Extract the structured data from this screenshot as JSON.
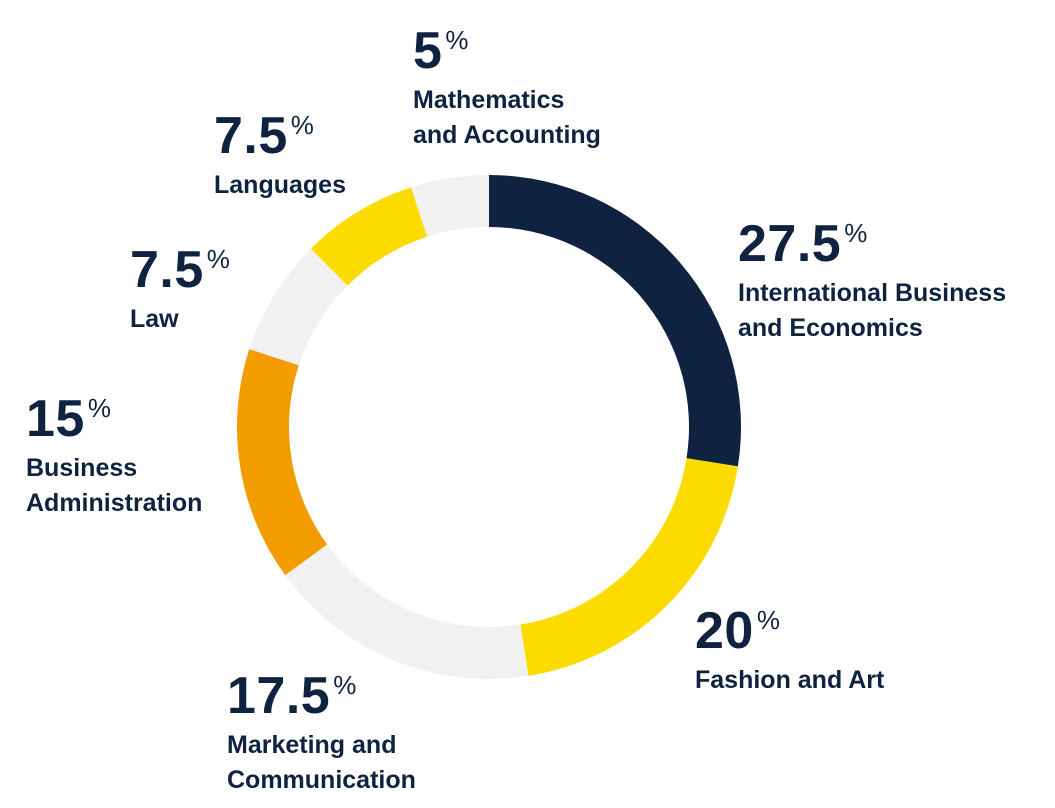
{
  "chart_data": {
    "type": "pie",
    "variant": "donut",
    "categories": [
      "International Business and Economics",
      "Fashion and Art",
      "Marketing and Communication",
      "Business Administration",
      "Law",
      "Languages",
      "Mathematics and Accounting"
    ],
    "values": [
      27.5,
      20,
      17.5,
      15,
      7.5,
      7.5,
      5
    ],
    "colors": [
      "#0f2240",
      "#fcdb00",
      "#f1f1f1",
      "#f39c00",
      "#f1f1f1",
      "#fcdb00",
      "#f1f1f1"
    ],
    "labels": [
      {
        "value": "27.5",
        "unit": "%",
        "lines": [
          "International Business",
          "and Economics"
        ]
      },
      {
        "value": "20",
        "unit": "%",
        "lines": [
          "Fashion and Art"
        ]
      },
      {
        "value": "17.5",
        "unit": "%",
        "lines": [
          "Marketing and",
          "Communication"
        ]
      },
      {
        "value": "15",
        "unit": "%",
        "lines": [
          "Business",
          "Administration"
        ]
      },
      {
        "value": "7.5",
        "unit": "%",
        "lines": [
          "Law"
        ]
      },
      {
        "value": "7.5",
        "unit": "%",
        "lines": [
          "Languages"
        ]
      },
      {
        "value": "5",
        "unit": "%",
        "lines": [
          "Mathematics",
          "and Accounting"
        ]
      }
    ],
    "start_angle": "top",
    "direction": "clockwise",
    "legend": "none"
  }
}
